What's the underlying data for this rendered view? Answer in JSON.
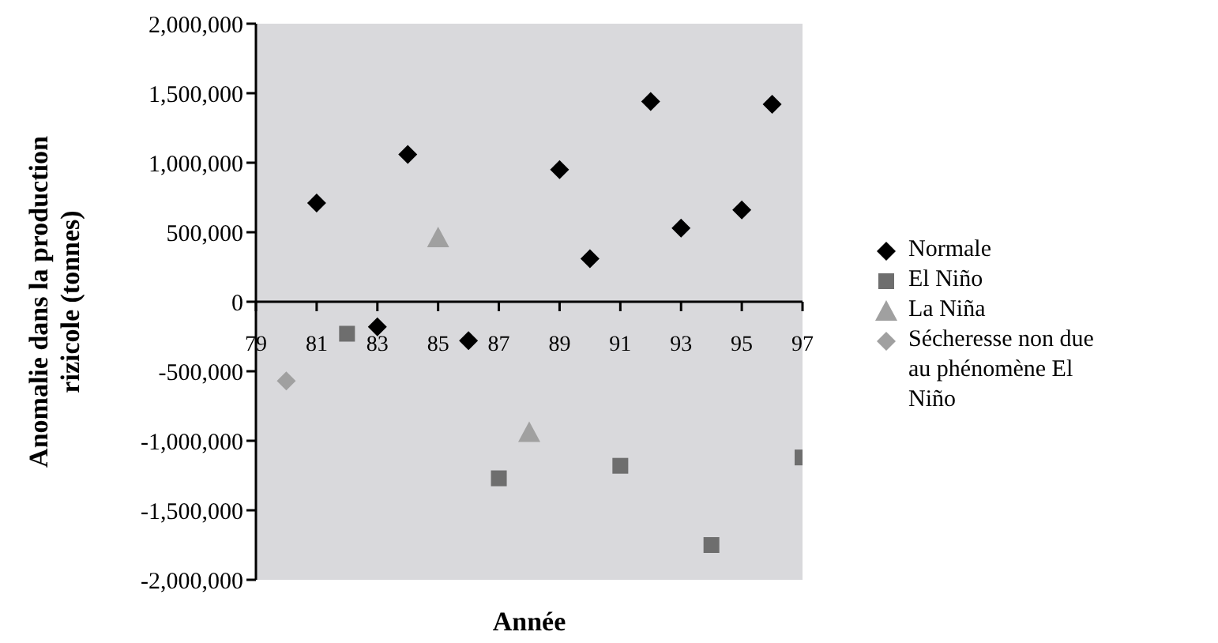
{
  "chart_data": {
    "type": "scatter",
    "xlabel": "Année",
    "ylabel": "Anomalie dans la production rizicole (tonnes)",
    "xlim": [
      79,
      97
    ],
    "xticks": [
      79,
      81,
      83,
      85,
      87,
      89,
      91,
      93,
      95,
      97
    ],
    "ylim": [
      -2000000,
      2000000
    ],
    "yticks": [
      {
        "value": -2000000,
        "label": "-2,000,000"
      },
      {
        "value": -1500000,
        "label": "-1,500,000"
      },
      {
        "value": -1000000,
        "label": "-1,000,000"
      },
      {
        "value": -500000,
        "label": "-500,000"
      },
      {
        "value": 0,
        "label": "0"
      },
      {
        "value": 500000,
        "label": "500,000"
      },
      {
        "value": 1000000,
        "label": "1,000,000"
      },
      {
        "value": 1500000,
        "label": "1,500,000"
      },
      {
        "value": 2000000,
        "label": "2,000,000"
      }
    ],
    "legend": "right",
    "grid": false,
    "series": [
      {
        "name": "Normale",
        "color": "#000000",
        "marker": "diamond",
        "x": [
          81,
          83,
          84,
          86,
          89,
          90,
          92,
          93,
          95,
          96
        ],
        "values": [
          710000,
          -180000,
          1060000,
          -280000,
          950000,
          310000,
          1440000,
          530000,
          660000,
          1420000
        ]
      },
      {
        "name": "El Niño",
        "color": "#6e6e6e",
        "marker": "square",
        "x": [
          82,
          87,
          91,
          94,
          97
        ],
        "values": [
          -230000,
          -1270000,
          -1180000,
          -1750000,
          -1120000
        ]
      },
      {
        "name": "La Niña",
        "color": "#a0a0a0",
        "marker": "triangle",
        "x": [
          85,
          88
        ],
        "values": [
          460000,
          -940000
        ]
      },
      {
        "name": "Sécheresse non due au phénomène El Niño",
        "color": "#a0a0a0",
        "marker": "diamond",
        "x": [
          80
        ],
        "values": [
          -570000
        ]
      }
    ]
  }
}
